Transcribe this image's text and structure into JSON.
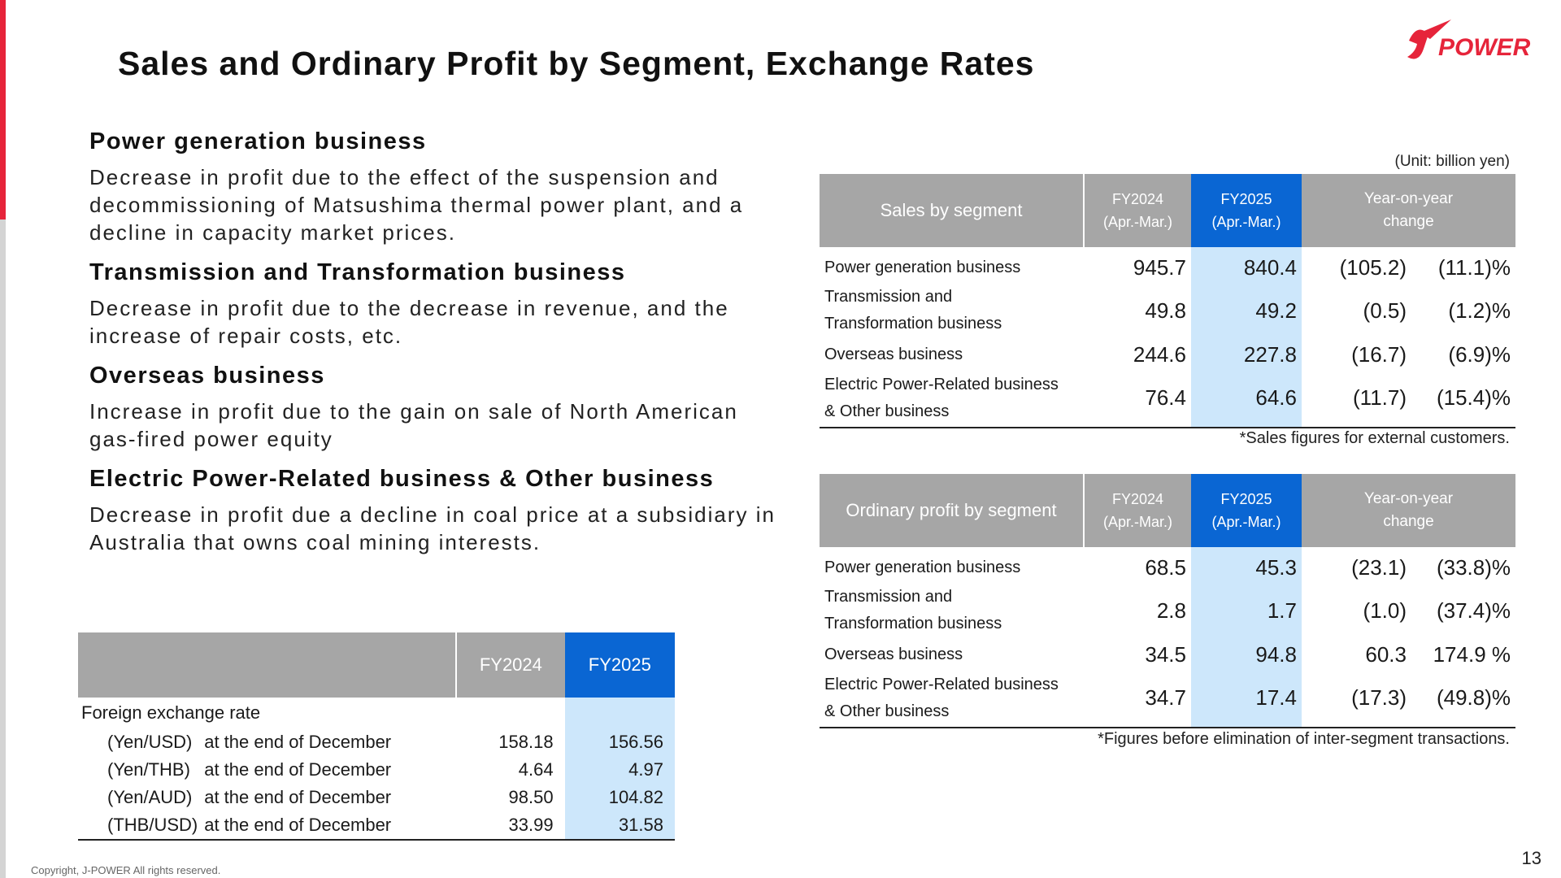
{
  "title": "Sales and Ordinary Profit by Segment, Exchange Rates",
  "logo_text": "POWER",
  "sections": [
    {
      "heading": "Power generation business",
      "text": "Decrease in profit due to the effect of the suspension and decommissioning of Matsushima thermal power plant, and a decline in capacity market prices."
    },
    {
      "heading": "Transmission and Transformation business",
      "text": "Decrease in profit due to the decrease in revenue, and the increase of repair costs, etc."
    },
    {
      "heading": "Overseas business",
      "text": "Increase in profit due to the gain on sale of North American gas-fired power equity"
    },
    {
      "heading": "Electric Power-Related business & Other business",
      "text": "Decrease in profit due a decline in coal price at a subsidiary in Australia that owns coal mining interests."
    }
  ],
  "unit": "(Unit: billion yen)",
  "sales_table": {
    "header": {
      "name": "Sales by segment",
      "fy2024": "FY2024",
      "fy2024_sub": "(Apr.-Mar.)",
      "fy2025": "FY2025",
      "fy2025_sub": "(Apr.-Mar.)",
      "yoy": "Year-on-year",
      "yoy_sub": "change"
    },
    "rows": [
      {
        "l1": "Power generation business",
        "l2": "",
        "fy2024": "945.7",
        "fy2025": "840.4",
        "chg": "(105.2)",
        "pct": "(11.1)%"
      },
      {
        "l1": "Transmission and",
        "l2": "Transformation business",
        "fy2024": "49.8",
        "fy2025": "49.2",
        "chg": "(0.5)",
        "pct": "(1.2)%"
      },
      {
        "l1": "Overseas business",
        "l2": "",
        "fy2024": "244.6",
        "fy2025": "227.8",
        "chg": "(16.7)",
        "pct": "(6.9)%"
      },
      {
        "l1": "Electric Power-Related business",
        "l2": "& Other business",
        "fy2024": "76.4",
        "fy2025": "64.6",
        "chg": "(11.7)",
        "pct": "(15.4)%"
      }
    ],
    "note": "*Sales figures for external customers."
  },
  "profit_table": {
    "header": {
      "name": "Ordinary profit by segment",
      "fy2024": "FY2024",
      "fy2024_sub": "(Apr.-Mar.)",
      "fy2025": "FY2025",
      "fy2025_sub": "(Apr.-Mar.)",
      "yoy": "Year-on-year",
      "yoy_sub": "change"
    },
    "rows": [
      {
        "l1": "Power generation business",
        "l2": "",
        "fy2024": "68.5",
        "fy2025": "45.3",
        "chg": "(23.1)",
        "pct": "(33.8)%"
      },
      {
        "l1": "Transmission and",
        "l2": "Transformation business",
        "fy2024": "2.8",
        "fy2025": "1.7",
        "chg": "(1.0)",
        "pct": "(37.4)%"
      },
      {
        "l1": "Overseas business",
        "l2": "",
        "fy2024": "34.5",
        "fy2025": "94.8",
        "chg": "60.3",
        "pct": "174.9 %"
      },
      {
        "l1": "Electric Power-Related business",
        "l2": "& Other business",
        "fy2024": "34.7",
        "fy2025": "17.4",
        "chg": "(17.3)",
        "pct": "(49.8)%"
      }
    ],
    "note": "*Figures before elimination of inter-segment transactions."
  },
  "fx_table": {
    "header": {
      "fy2024": "FY2024",
      "fy2025": "FY2025"
    },
    "group_label": "Foreign exchange rate",
    "rows": [
      {
        "pair": "(Yen/USD)",
        "desc": "at the end of December",
        "fy2024": "158.18",
        "fy2025": "156.56"
      },
      {
        "pair": "(Yen/THB)",
        "desc": "at the end of December",
        "fy2024": "4.64",
        "fy2025": "4.97"
      },
      {
        "pair": "(Yen/AUD)",
        "desc": "at the end of December",
        "fy2024": "98.50",
        "fy2025": "104.82"
      },
      {
        "pair": "(THB/USD)",
        "desc": "at the end of December",
        "fy2024": "33.99",
        "fy2025": "31.58"
      }
    ]
  },
  "copyright": "Copyright, J-POWER All rights reserved.",
  "page_number": "13"
}
